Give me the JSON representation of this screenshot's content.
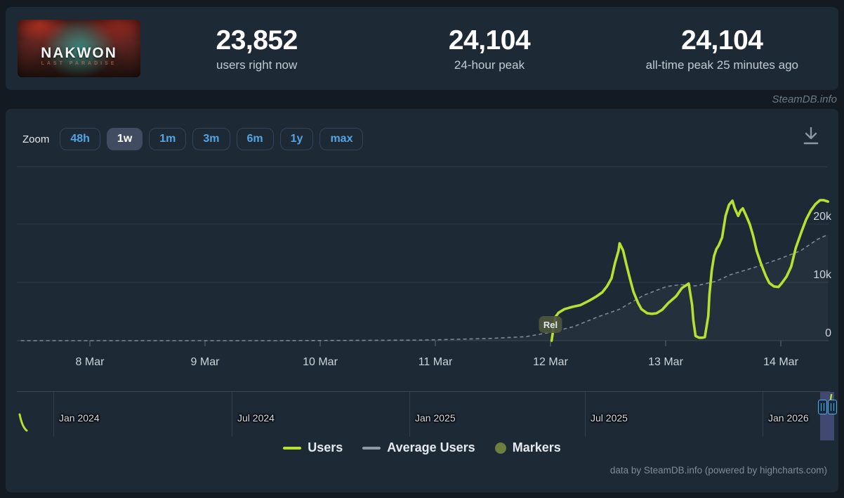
{
  "header": {
    "game_title": "NAKWON",
    "game_subtitle": "LAST PARADISE",
    "stats": [
      {
        "value": "23,852",
        "label": "users right now"
      },
      {
        "value": "24,104",
        "label": "24-hour peak"
      },
      {
        "value": "24,104",
        "label": "all-time peak 25 minutes ago"
      }
    ]
  },
  "watermark": "SteamDB.info",
  "toolbar": {
    "zoom_label": "Zoom",
    "ranges": [
      {
        "label": "48h",
        "selected": false
      },
      {
        "label": "1w",
        "selected": true
      },
      {
        "label": "1m",
        "selected": false
      },
      {
        "label": "3m",
        "selected": false
      },
      {
        "label": "6m",
        "selected": false
      },
      {
        "label": "1y",
        "selected": false
      },
      {
        "label": "max",
        "selected": false
      }
    ],
    "download_icon": "download-icon"
  },
  "chart_data": {
    "type": "line",
    "title": "Concurrent players, 1 week view",
    "x_axis": {
      "tick_labels": [
        "8 Mar",
        "9 Mar",
        "10 Mar",
        "11 Mar",
        "12 Mar",
        "13 Mar",
        "14 Mar"
      ],
      "x_unit": "days since 8 Mar 00:00"
    },
    "y_axis": {
      "tick_labels": [
        "0",
        "10k",
        "20k"
      ],
      "tick_values": [
        0,
        10000,
        20000
      ],
      "range": [
        0,
        29500
      ],
      "grid": true
    },
    "legend_position": "bottom",
    "series": [
      {
        "name": "Users",
        "color": "#b4e22e",
        "dashed": false,
        "points": [
          [
            4.01,
            0
          ],
          [
            4.04,
            4000
          ],
          [
            4.07,
            4800
          ],
          [
            4.12,
            5400
          ],
          [
            4.19,
            5800
          ],
          [
            4.26,
            6100
          ],
          [
            4.34,
            6900
          ],
          [
            4.4,
            7600
          ],
          [
            4.45,
            8300
          ],
          [
            4.49,
            9300
          ],
          [
            4.53,
            10700
          ],
          [
            4.56,
            13300
          ],
          [
            4.59,
            15400
          ],
          [
            4.6,
            16700
          ],
          [
            4.63,
            15500
          ],
          [
            4.66,
            13000
          ],
          [
            4.69,
            10600
          ],
          [
            4.72,
            8400
          ],
          [
            4.76,
            6500
          ],
          [
            4.79,
            5400
          ],
          [
            4.84,
            4700
          ],
          [
            4.88,
            4600
          ],
          [
            4.92,
            4700
          ],
          [
            4.97,
            5300
          ],
          [
            5.02,
            6400
          ],
          [
            5.09,
            7600
          ],
          [
            5.14,
            9000
          ],
          [
            5.2,
            9800
          ],
          [
            5.21,
            8600
          ],
          [
            5.23,
            6100
          ],
          [
            5.24,
            3500
          ],
          [
            5.26,
            800
          ],
          [
            5.29,
            500
          ],
          [
            5.32,
            500
          ],
          [
            5.34,
            600
          ],
          [
            5.37,
            4200
          ],
          [
            5.38,
            7800
          ],
          [
            5.4,
            12000
          ],
          [
            5.42,
            14500
          ],
          [
            5.44,
            15700
          ],
          [
            5.46,
            16300
          ],
          [
            5.49,
            17700
          ],
          [
            5.52,
            21400
          ],
          [
            5.55,
            23300
          ],
          [
            5.58,
            24000
          ],
          [
            5.6,
            22700
          ],
          [
            5.63,
            21400
          ],
          [
            5.65,
            22300
          ],
          [
            5.67,
            22700
          ],
          [
            5.7,
            21400
          ],
          [
            5.73,
            20000
          ],
          [
            5.76,
            18000
          ],
          [
            5.79,
            15400
          ],
          [
            5.83,
            13100
          ],
          [
            5.87,
            11100
          ],
          [
            5.9,
            9900
          ],
          [
            5.94,
            9300
          ],
          [
            5.98,
            9200
          ],
          [
            6.01,
            9900
          ],
          [
            6.05,
            11000
          ],
          [
            6.09,
            12700
          ],
          [
            6.13,
            15900
          ],
          [
            6.18,
            18700
          ],
          [
            6.22,
            20800
          ],
          [
            6.26,
            22300
          ],
          [
            6.3,
            23400
          ],
          [
            6.34,
            24100
          ],
          [
            6.37,
            24104
          ],
          [
            6.41,
            23852
          ]
        ]
      },
      {
        "name": "Average Users",
        "color": "#8d9aa6",
        "dashed": true,
        "points": [
          [
            -0.6,
            0
          ],
          [
            0.44,
            0
          ],
          [
            1.66,
            0
          ],
          [
            2.88,
            100
          ],
          [
            3.12,
            200
          ],
          [
            3.49,
            400
          ],
          [
            3.79,
            700
          ],
          [
            3.99,
            1400
          ],
          [
            4.2,
            2400
          ],
          [
            4.4,
            4000
          ],
          [
            4.6,
            5400
          ],
          [
            4.81,
            7800
          ],
          [
            5.01,
            9300
          ],
          [
            5.13,
            9600
          ],
          [
            5.26,
            9400
          ],
          [
            5.44,
            10200
          ],
          [
            5.56,
            11300
          ],
          [
            5.76,
            12500
          ],
          [
            5.97,
            13900
          ],
          [
            6.17,
            15400
          ],
          [
            6.32,
            17400
          ],
          [
            6.41,
            18200
          ]
        ]
      }
    ],
    "markers": [
      {
        "label": "Rel",
        "meaning": "Release",
        "day": 4.0,
        "value": 1500
      }
    ]
  },
  "navigator": {
    "labels": [
      "Jan 2024",
      "Jul 2024",
      "Jan 2025",
      "Jul 2025",
      "Jan 2026"
    ],
    "selected_range": "7 Mar – 14 Mar (current week)"
  },
  "legend": [
    {
      "label": "Users",
      "color": "#b4e22e",
      "swatch": "line"
    },
    {
      "label": "Average Users",
      "color": "#8d9aa6",
      "swatch": "line"
    },
    {
      "label": "Markers",
      "color": "#6d7f3e",
      "swatch": "circle"
    }
  ],
  "credits": "data by SteamDB.info (powered by highcharts.com)"
}
